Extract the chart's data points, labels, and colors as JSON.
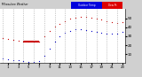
{
  "title_left": "Milwaukee Weather",
  "title_right1": "Outdoor Temp",
  "title_right2": "Dew Pt",
  "bg_color": "#d0d0d0",
  "plot_bg": "#ffffff",
  "temp": [
    28,
    27,
    26,
    25,
    24,
    24,
    24,
    24,
    30,
    36,
    41,
    44,
    47,
    50,
    51,
    52,
    52,
    51,
    50,
    49,
    47,
    46,
    45,
    46
  ],
  "dew": [
    5,
    4,
    3,
    3,
    2,
    1,
    1,
    2,
    8,
    16,
    24,
    30,
    34,
    36,
    38,
    38,
    37,
    36,
    35,
    34,
    33,
    33,
    33,
    35
  ],
  "temp_color": "#cc0000",
  "dew_color": "#0000cc",
  "ylim": [
    0,
    60
  ],
  "ytick_vals": [
    10,
    20,
    30,
    40,
    50
  ],
  "ytick_labels": [
    "10",
    "20",
    "30",
    "40",
    "50"
  ],
  "xtick_vals": [
    1,
    3,
    5,
    7,
    9,
    11,
    13,
    15,
    17,
    19,
    21,
    23
  ],
  "xtick_labels": [
    "1",
    "3",
    "5",
    "7",
    "9",
    "11",
    "13",
    "15",
    "17",
    "19",
    "21",
    "23"
  ],
  "grid_hours": [
    0,
    2,
    4,
    6,
    8,
    10,
    12,
    14,
    16,
    18,
    20,
    22,
    24
  ],
  "grid_color": "#888888",
  "title_bar_blue": "#0000dd",
  "title_bar_red": "#dd0000",
  "red_line_x": [
    4,
    7
  ],
  "red_line_y": [
    24,
    24
  ]
}
